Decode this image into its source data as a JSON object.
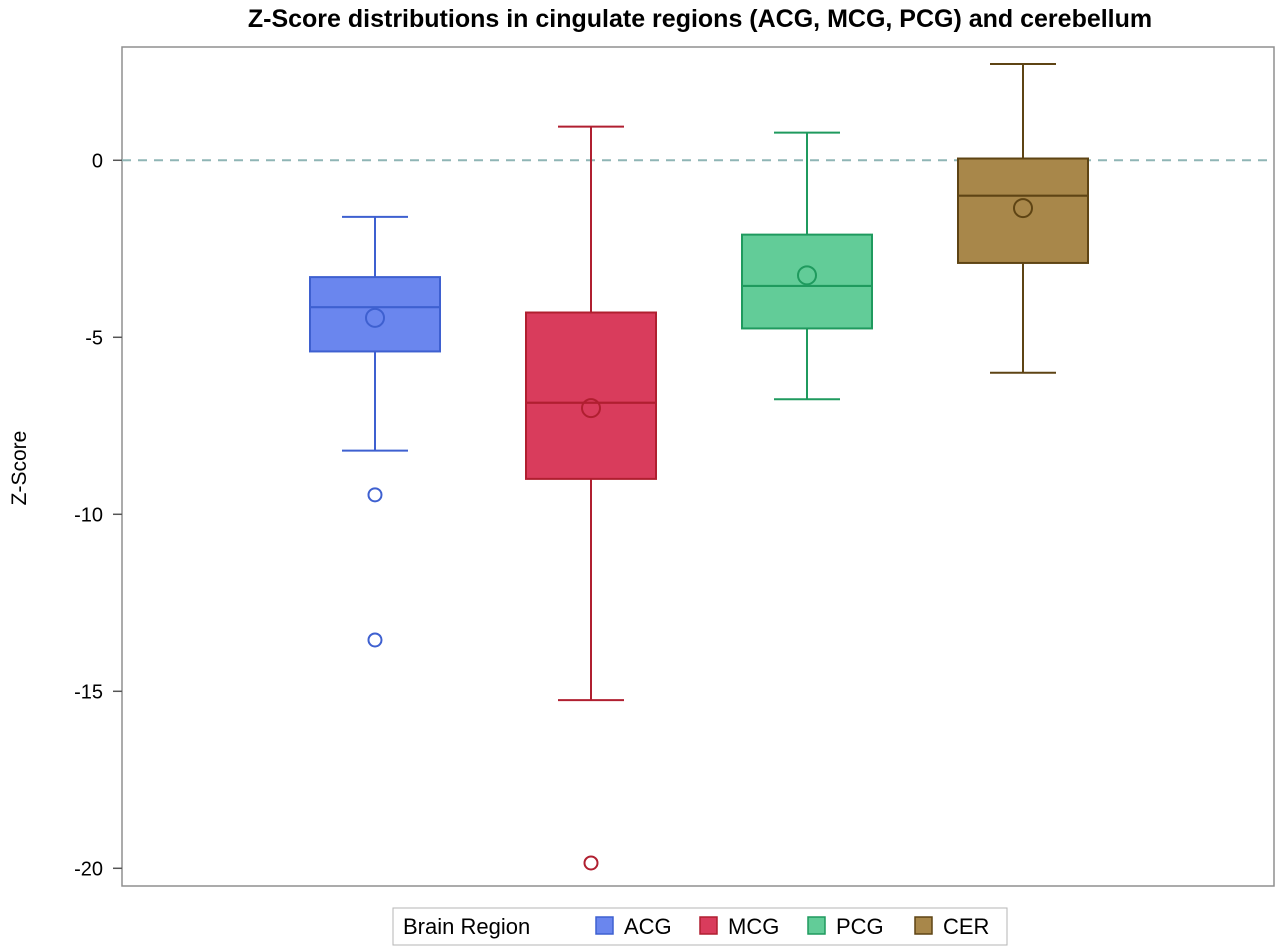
{
  "chart_data": {
    "type": "box",
    "title": "Z-Score distributions in cingulate regions (ACG, MCG, PCG) and cerebellum",
    "xlabel": "",
    "ylabel": "Z-Score",
    "ylim": [
      -20.5,
      3.2
    ],
    "yticks": [
      0,
      -5,
      -10,
      -15,
      -20
    ],
    "reference_line": {
      "y": 0,
      "style": "dashed",
      "color": "#8fb5b5"
    },
    "grid": false,
    "legend": {
      "title": "Brain Region",
      "placement": "bottom-center"
    },
    "series": [
      {
        "name": "ACG",
        "color": "#6a86ee",
        "edge": "#3e60d0",
        "whisker_low": -8.2,
        "q1": -5.4,
        "median": -4.15,
        "q3": -3.3,
        "whisker_high": -1.6,
        "mean": -4.45,
        "outliers": [
          -9.45,
          -13.55
        ]
      },
      {
        "name": "MCG",
        "color": "#d93c5c",
        "edge": "#b01f30",
        "whisker_low": -15.25,
        "q1": -9.0,
        "median": -6.85,
        "q3": -4.3,
        "whisker_high": 0.95,
        "mean": -7.0,
        "outliers": [
          -19.85
        ]
      },
      {
        "name": "PCG",
        "color": "#62cc98",
        "edge": "#1f9a5e",
        "whisker_low": -6.75,
        "q1": -4.75,
        "median": -3.55,
        "q3": -2.1,
        "whisker_high": 0.78,
        "mean": -3.25,
        "outliers": []
      },
      {
        "name": "CER",
        "color": "#a8874a",
        "edge": "#5e4414",
        "whisker_low": -6.0,
        "q1": -2.9,
        "median": -1.0,
        "q3": 0.05,
        "whisker_high": 2.72,
        "mean": -1.35,
        "outliers": []
      }
    ]
  }
}
